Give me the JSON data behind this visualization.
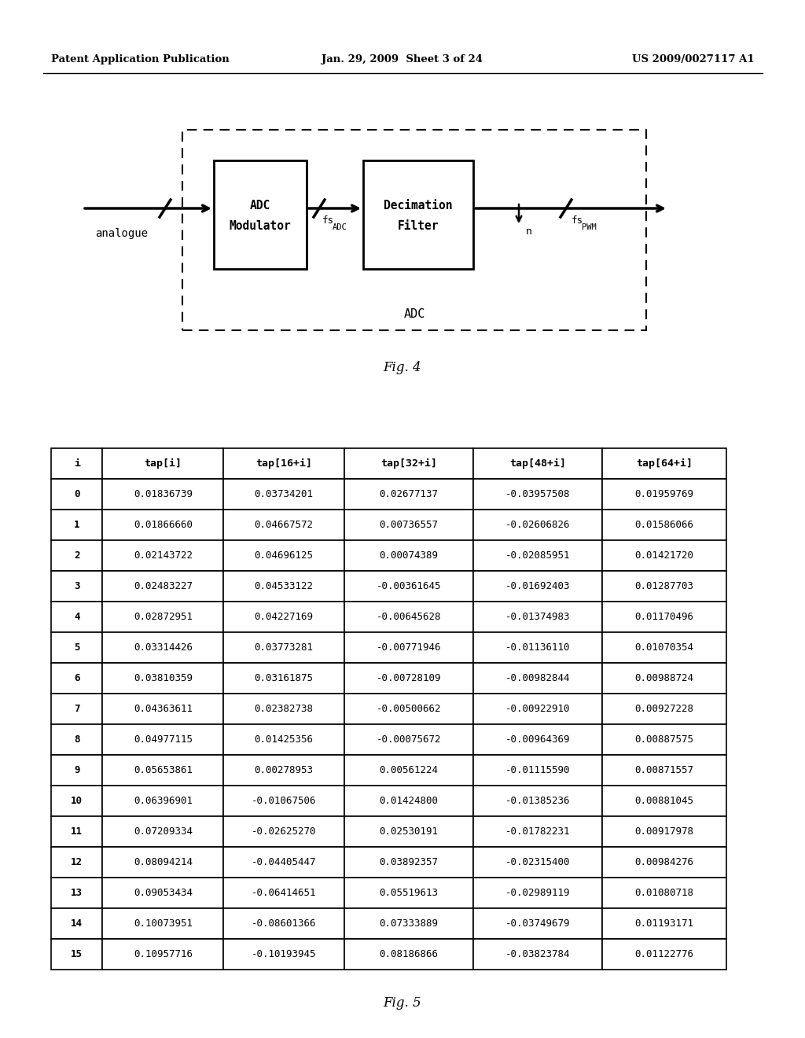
{
  "header_left": "Patent Application Publication",
  "header_center": "Jan. 29, 2009  Sheet 3 of 24",
  "header_right": "US 2009/0027117 A1",
  "fig4_caption": "Fig. 4",
  "fig5_caption": "Fig. 5",
  "table_headers": [
    "i",
    "tap[i]",
    "tap[16+i]",
    "tap[32+i]",
    "tap[48+i]",
    "tap[64+i]"
  ],
  "table_data": [
    [
      "0",
      "0.01836739",
      "0.03734201",
      "0.02677137",
      "-0.03957508",
      "0.01959769"
    ],
    [
      "1",
      "0.01866660",
      "0.04667572",
      "0.00736557",
      "-0.02606826",
      "0.01586066"
    ],
    [
      "2",
      "0.02143722",
      "0.04696125",
      "0.00074389",
      "-0.02085951",
      "0.01421720"
    ],
    [
      "3",
      "0.02483227",
      "0.04533122",
      "-0.00361645",
      "-0.01692403",
      "0.01287703"
    ],
    [
      "4",
      "0.02872951",
      "0.04227169",
      "-0.00645628",
      "-0.01374983",
      "0.01170496"
    ],
    [
      "5",
      "0.03314426",
      "0.03773281",
      "-0.00771946",
      "-0.01136110",
      "0.01070354"
    ],
    [
      "6",
      "0.03810359",
      "0.03161875",
      "-0.00728109",
      "-0.00982844",
      "0.00988724"
    ],
    [
      "7",
      "0.04363611",
      "0.02382738",
      "-0.00500662",
      "-0.00922910",
      "0.00927228"
    ],
    [
      "8",
      "0.04977115",
      "0.01425356",
      "-0.00075672",
      "-0.00964369",
      "0.00887575"
    ],
    [
      "9",
      "0.05653861",
      "0.00278953",
      "0.00561224",
      "-0.01115590",
      "0.00871557"
    ],
    [
      "10",
      "0.06396901",
      "-0.01067506",
      "0.01424800",
      "-0.01385236",
      "0.00881045"
    ],
    [
      "11",
      "0.07209334",
      "-0.02625270",
      "0.02530191",
      "-0.01782231",
      "0.00917978"
    ],
    [
      "12",
      "0.08094214",
      "-0.04405447",
      "0.03892357",
      "-0.02315400",
      "0.00984276"
    ],
    [
      "13",
      "0.09053434",
      "-0.06414651",
      "0.05519613",
      "-0.02989119",
      "0.01080718"
    ],
    [
      "14",
      "0.10073951",
      "-0.08601366",
      "0.07333889",
      "-0.03749679",
      "0.01193171"
    ],
    [
      "15",
      "0.10957716",
      "-0.10193945",
      "0.08186866",
      "-0.03823784",
      "0.01122776"
    ]
  ],
  "bg_color": "#ffffff",
  "text_color": "#000000"
}
